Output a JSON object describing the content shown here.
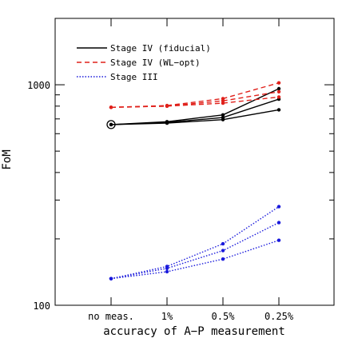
{
  "chart_data": {
    "type": "line",
    "xlabel": "accuracy of A−P measurement",
    "ylabel": "FoM",
    "categories": [
      "no meas.",
      "1%",
      "0.5%",
      "0.25%"
    ],
    "yscale": "log",
    "ylim": [
      100,
      2000
    ],
    "ytick_labels": [
      {
        "value": 100,
        "label": "100"
      },
      {
        "value": 1000,
        "label": "1000"
      }
    ],
    "legend_position": "top-left",
    "legend": [
      {
        "label": "Stage IV (fiducial)",
        "color": "#000000",
        "dash": "solid"
      },
      {
        "label": "Stage IV (WL−opt)",
        "color": "#e0201a",
        "dash": "dashed"
      },
      {
        "label": "Stage III",
        "color": "#1a1adc",
        "dash": "dotted"
      }
    ],
    "series": [
      {
        "group": 0,
        "values": [
          660,
          680,
          730,
          960
        ]
      },
      {
        "group": 0,
        "values": [
          660,
          675,
          710,
          860
        ]
      },
      {
        "group": 0,
        "values": [
          660,
          670,
          695,
          770
        ]
      },
      {
        "group": 1,
        "values": [
          790,
          805,
          865,
          1020
        ]
      },
      {
        "group": 1,
        "values": [
          790,
          800,
          845,
          930
        ]
      },
      {
        "group": 1,
        "values": [
          790,
          800,
          825,
          880
        ]
      },
      {
        "group": 2,
        "values": [
          132,
          150,
          190,
          280
        ]
      },
      {
        "group": 2,
        "values": [
          132,
          147,
          177,
          237
        ]
      },
      {
        "group": 2,
        "values": [
          132,
          142,
          162,
          197
        ]
      }
    ],
    "annotations": [
      {
        "type": "circled-point",
        "category": "no meas.",
        "value": 660
      }
    ]
  }
}
